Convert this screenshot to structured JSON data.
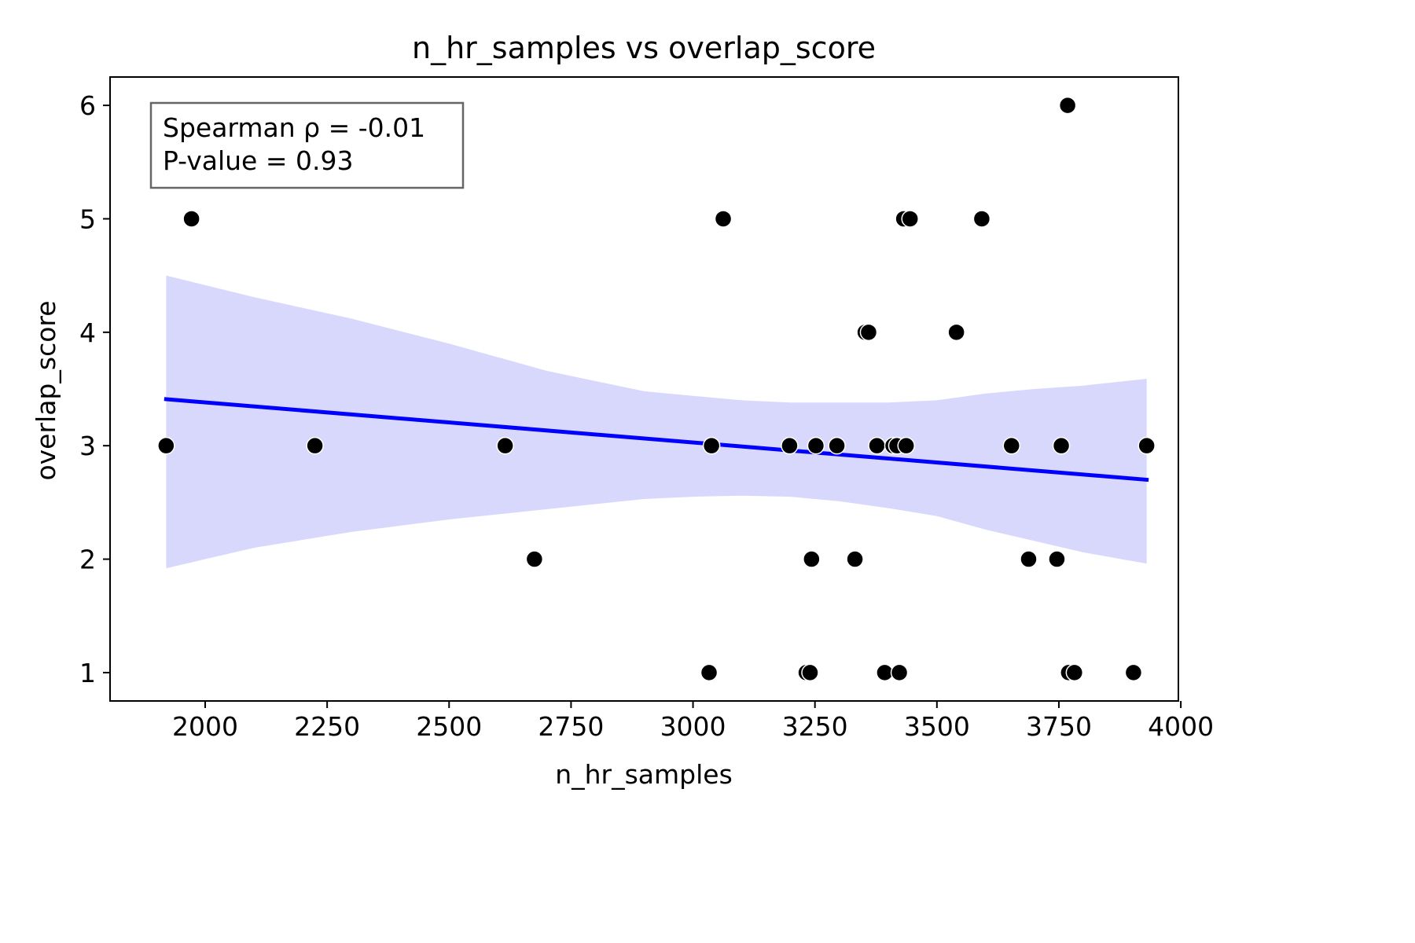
{
  "chart_data": {
    "type": "scatter",
    "title": "n_hr_samples vs overlap_score",
    "xlabel": "n_hr_samples",
    "ylabel": "overlap_score",
    "xlim": [
      1805,
      3995
    ],
    "ylim": [
      0.75,
      6.25
    ],
    "xticks": [
      2000,
      2250,
      2500,
      2750,
      3000,
      3250,
      3500,
      3750,
      4000
    ],
    "yticks": [
      1,
      2,
      3,
      4,
      5,
      6
    ],
    "grid": false,
    "annotation": {
      "line1": "Spearman ρ = -0.01",
      "line2": "P-value = 0.93",
      "position": "top-left"
    },
    "points": [
      {
        "x": 1920,
        "y": 3
      },
      {
        "x": 1972,
        "y": 5
      },
      {
        "x": 2225,
        "y": 3
      },
      {
        "x": 2615,
        "y": 3
      },
      {
        "x": 2675,
        "y": 2
      },
      {
        "x": 3033,
        "y": 1
      },
      {
        "x": 3038,
        "y": 3
      },
      {
        "x": 3062,
        "y": 5
      },
      {
        "x": 3198,
        "y": 3
      },
      {
        "x": 3232,
        "y": 1
      },
      {
        "x": 3240,
        "y": 1
      },
      {
        "x": 3243,
        "y": 2
      },
      {
        "x": 3252,
        "y": 3
      },
      {
        "x": 3295,
        "y": 3
      },
      {
        "x": 3332,
        "y": 2
      },
      {
        "x": 3353,
        "y": 4
      },
      {
        "x": 3360,
        "y": 4
      },
      {
        "x": 3377,
        "y": 3
      },
      {
        "x": 3393,
        "y": 1
      },
      {
        "x": 3410,
        "y": 3
      },
      {
        "x": 3418,
        "y": 3
      },
      {
        "x": 3423,
        "y": 1
      },
      {
        "x": 3432,
        "y": 5
      },
      {
        "x": 3437,
        "y": 3
      },
      {
        "x": 3445,
        "y": 5
      },
      {
        "x": 3540,
        "y": 4
      },
      {
        "x": 3592,
        "y": 5
      },
      {
        "x": 3653,
        "y": 3
      },
      {
        "x": 3688,
        "y": 2
      },
      {
        "x": 3746,
        "y": 2
      },
      {
        "x": 3755,
        "y": 3
      },
      {
        "x": 3768,
        "y": 6
      },
      {
        "x": 3770,
        "y": 1
      },
      {
        "x": 3782,
        "y": 1
      },
      {
        "x": 3903,
        "y": 1
      },
      {
        "x": 3930,
        "y": 3
      }
    ],
    "regression": {
      "x": [
        1920,
        3930
      ],
      "y": [
        3.41,
        2.7
      ]
    },
    "confidence_band": {
      "x": [
        1920,
        2100,
        2300,
        2500,
        2700,
        2900,
        3000,
        3100,
        3200,
        3300,
        3400,
        3500,
        3600,
        3700,
        3800,
        3930
      ],
      "upper": [
        4.5,
        4.31,
        4.12,
        3.9,
        3.66,
        3.48,
        3.44,
        3.4,
        3.38,
        3.38,
        3.38,
        3.4,
        3.46,
        3.5,
        3.53,
        3.59
      ],
      "lower": [
        1.92,
        2.1,
        2.24,
        2.35,
        2.44,
        2.53,
        2.55,
        2.56,
        2.55,
        2.51,
        2.45,
        2.38,
        2.26,
        2.16,
        2.06,
        1.96
      ]
    },
    "colors": {
      "points": "#000000",
      "point_edge": "#ffffff",
      "regression_line": "#0000ff",
      "band": "#d8d8fd",
      "annotation_border": "#666666"
    }
  }
}
